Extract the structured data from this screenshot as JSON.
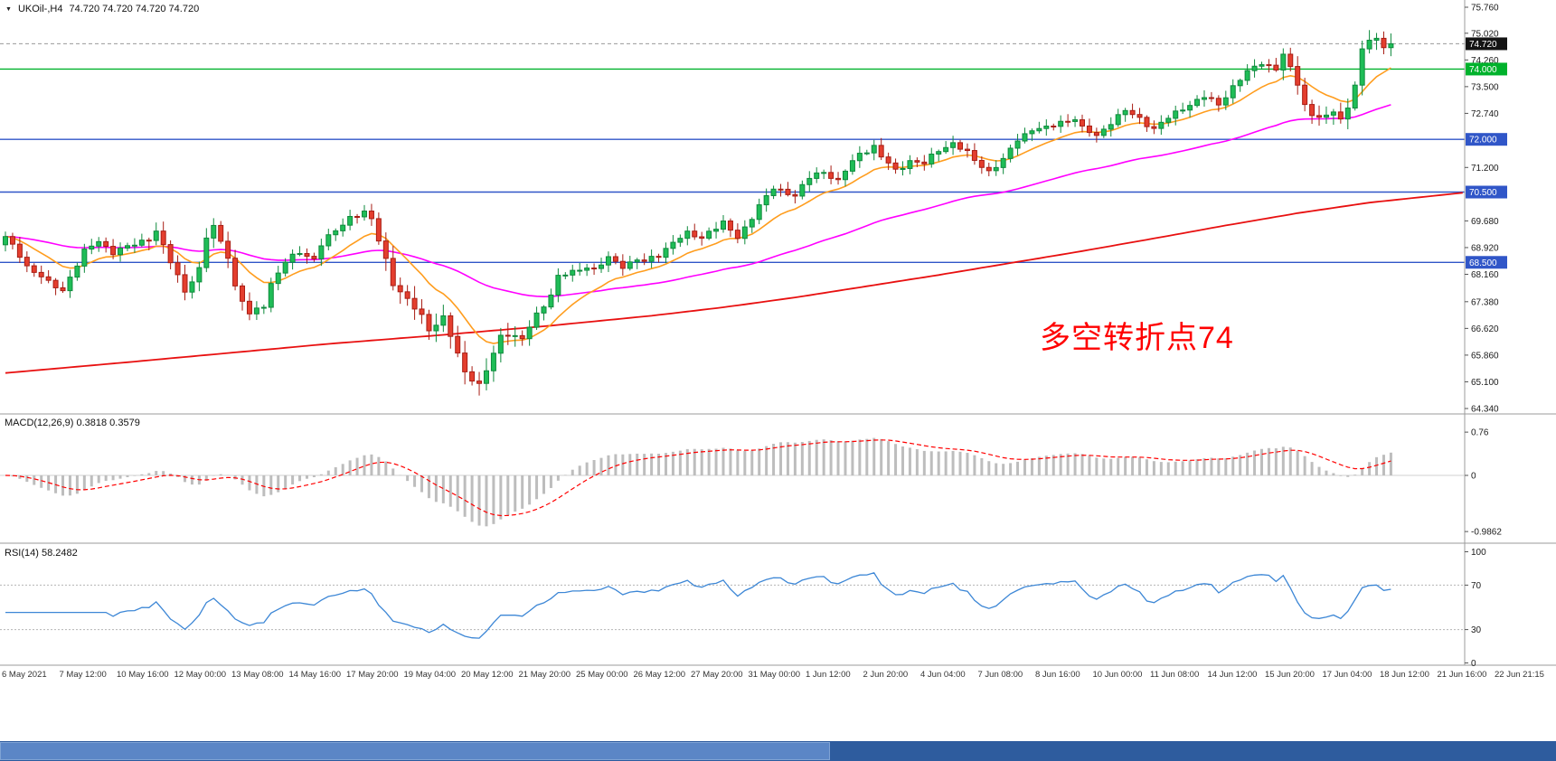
{
  "header": {
    "dropdown_icon": "▼",
    "symbol_timeframe": "UKOil-,H4",
    "ohlc": "74.720 74.720 74.720 74.720"
  },
  "annotation": {
    "text": "多空转折点74",
    "color": "#ff0000"
  },
  "colors": {
    "background": "#ffffff",
    "candle_up": "#1fbd57",
    "candle_up_border": "#0e8a3c",
    "candle_down": "#e43e2e",
    "candle_down_border": "#a81d14",
    "ma_fast": "#ff9d1e",
    "ma_mid": "#ff00ff",
    "ma_slow": "#e81010",
    "macd_histogram": "#bdbdbd",
    "macd_signal": "#ff0000",
    "rsi_line": "#3d87d6",
    "level_blue": "#3056c8",
    "level_green": "#00b22c",
    "current_tag_bg": "#141414",
    "separator": "#9b9b9b"
  },
  "bottom_bar": {
    "track_color": "#2e5c9e",
    "thumb_color": "#5b86c6"
  },
  "chart_data": {
    "type": "candlestick",
    "symbol": "UKOil-",
    "timeframe": "H4",
    "current_price": 74.72,
    "current": {
      "label": "74.720",
      "value": 74.72,
      "bg": "#141414"
    },
    "price_axis_range": [
      64.34,
      75.76
    ],
    "y_ticks": [
      "75.760",
      "75.020",
      "74.260",
      "73.500",
      "72.740",
      "71.200",
      "69.680",
      "68.920",
      "68.160",
      "67.380",
      "66.620",
      "65.860",
      "65.100",
      "64.340"
    ],
    "levels": [
      {
        "label": "74.000",
        "value": 74.0,
        "color": "#00b22c"
      },
      {
        "label": "72.000",
        "value": 72.0,
        "color": "#3056c8"
      },
      {
        "label": "70.500",
        "value": 70.5,
        "color": "#3056c8"
      },
      {
        "label": "68.500",
        "value": 68.5,
        "color": "#3056c8"
      }
    ],
    "x_labels": [
      "6 May 2021",
      "7 May 12:00",
      "10 May 16:00",
      "12 May 00:00",
      "13 May 08:00",
      "14 May 16:00",
      "17 May 20:00",
      "19 May 04:00",
      "20 May 12:00",
      "21 May 20:00",
      "25 May 00:00",
      "26 May 12:00",
      "27 May 20:00",
      "31 May 00:00",
      "1 Jun 12:00",
      "2 Jun 20:00",
      "4 Jun 04:00",
      "7 Jun 08:00",
      "8 Jun 16:00",
      "10 Jun 00:00",
      "11 Jun 08:00",
      "14 Jun 12:00",
      "15 Jun 20:00",
      "17 Jun 04:00",
      "18 Jun 12:00",
      "21 Jun 16:00",
      "22 Jun 21:15"
    ],
    "num_candles": 194,
    "candles_waypoints": [
      [
        0,
        69.2
      ],
      [
        2,
        68.7
      ],
      [
        3,
        68.4
      ],
      [
        5,
        68.1
      ],
      [
        6,
        67.9
      ],
      [
        8,
        67.7
      ],
      [
        9,
        68.1
      ],
      [
        11,
        68.8
      ],
      [
        13,
        69.1
      ],
      [
        15,
        68.8
      ],
      [
        18,
        69.0
      ],
      [
        20,
        69.2
      ],
      [
        21,
        69.4
      ],
      [
        23,
        68.5
      ],
      [
        25,
        67.7
      ],
      [
        27,
        68.3
      ],
      [
        28,
        69.2
      ],
      [
        29,
        69.5
      ],
      [
        31,
        68.7
      ],
      [
        32,
        67.8
      ],
      [
        34,
        67.0
      ],
      [
        36,
        67.3
      ],
      [
        37,
        67.9
      ],
      [
        39,
        68.5
      ],
      [
        41,
        68.8
      ],
      [
        43,
        68.6
      ],
      [
        44,
        69.0
      ],
      [
        46,
        69.4
      ],
      [
        48,
        69.8
      ],
      [
        50,
        69.9
      ],
      [
        51,
        69.7
      ],
      [
        53,
        68.6
      ],
      [
        54,
        67.9
      ],
      [
        56,
        67.4
      ],
      [
        58,
        67.0
      ],
      [
        59,
        66.6
      ],
      [
        61,
        66.9
      ],
      [
        62,
        66.4
      ],
      [
        64,
        65.4
      ],
      [
        66,
        65.0
      ],
      [
        67,
        65.4
      ],
      [
        69,
        66.4
      ],
      [
        70,
        66.5
      ],
      [
        72,
        66.3
      ],
      [
        74,
        67.0
      ],
      [
        76,
        67.6
      ],
      [
        77,
        68.1
      ],
      [
        79,
        68.2
      ],
      [
        81,
        68.4
      ],
      [
        82,
        68.3
      ],
      [
        84,
        68.6
      ],
      [
        86,
        68.4
      ],
      [
        88,
        68.6
      ],
      [
        89,
        68.5
      ],
      [
        91,
        68.7
      ],
      [
        93,
        69.1
      ],
      [
        95,
        69.3
      ],
      [
        97,
        69.2
      ],
      [
        98,
        69.4
      ],
      [
        100,
        69.6
      ],
      [
        102,
        69.2
      ],
      [
        103,
        69.5
      ],
      [
        105,
        70.1
      ],
      [
        107,
        70.6
      ],
      [
        109,
        70.5
      ],
      [
        110,
        70.4
      ],
      [
        112,
        70.9
      ],
      [
        114,
        71.1
      ],
      [
        116,
        70.8
      ],
      [
        117,
        71.1
      ],
      [
        119,
        71.6
      ],
      [
        121,
        71.8
      ],
      [
        122,
        71.5
      ],
      [
        124,
        71.1
      ],
      [
        126,
        71.4
      ],
      [
        128,
        71.3
      ],
      [
        130,
        71.7
      ],
      [
        132,
        71.9
      ],
      [
        134,
        71.6
      ],
      [
        135,
        71.4
      ],
      [
        137,
        71.1
      ],
      [
        139,
        71.4
      ],
      [
        141,
        72.0
      ],
      [
        143,
        72.3
      ],
      [
        145,
        72.3
      ],
      [
        147,
        72.5
      ],
      [
        149,
        72.6
      ],
      [
        150,
        72.3
      ],
      [
        152,
        72.1
      ],
      [
        154,
        72.5
      ],
      [
        156,
        72.8
      ],
      [
        158,
        72.6
      ],
      [
        160,
        72.3
      ],
      [
        162,
        72.6
      ],
      [
        164,
        72.9
      ],
      [
        166,
        73.1
      ],
      [
        167,
        73.2
      ],
      [
        169,
        73.0
      ],
      [
        171,
        73.5
      ],
      [
        173,
        73.9
      ],
      [
        175,
        74.2
      ],
      [
        177,
        74.0
      ],
      [
        178,
        74.4
      ],
      [
        180,
        73.6
      ],
      [
        181,
        73.0
      ],
      [
        182,
        72.7
      ],
      [
        184,
        72.6
      ],
      [
        185,
        72.8
      ],
      [
        186,
        72.6
      ],
      [
        187,
        72.9
      ],
      [
        188,
        73.6
      ],
      [
        189,
        74.5
      ],
      [
        190,
        74.8
      ],
      [
        191,
        74.9
      ],
      [
        192,
        74.6
      ],
      [
        193,
        74.72
      ]
    ],
    "moving_averages": [
      {
        "name": "ma-fast",
        "type": "ema",
        "period": 12,
        "color": "#ff9d1e"
      },
      {
        "name": "ma-mid",
        "type": "ema",
        "period": 55,
        "color": "#ff00ff"
      },
      {
        "name": "ma-slow",
        "type": "waypoints",
        "color": "#e81010",
        "points": [
          [
            0,
            65.35
          ],
          [
            15,
            65.62
          ],
          [
            30,
            65.9
          ],
          [
            45,
            66.18
          ],
          [
            60,
            66.42
          ],
          [
            75,
            66.68
          ],
          [
            90,
            66.98
          ],
          [
            100,
            67.22
          ],
          [
            110,
            67.5
          ],
          [
            120,
            67.82
          ],
          [
            130,
            68.14
          ],
          [
            140,
            68.48
          ],
          [
            150,
            68.82
          ],
          [
            160,
            69.18
          ],
          [
            170,
            69.55
          ],
          [
            180,
            69.9
          ],
          [
            190,
            70.2
          ],
          [
            203,
            70.48
          ]
        ]
      }
    ],
    "indicators": [
      {
        "name": "MACD",
        "label": "MACD(12,26,9) 0.3818 0.3579",
        "params": [
          12,
          26,
          9
        ],
        "values": [
          "0.3818",
          "0.3579"
        ],
        "y_ticks": [
          "0.76",
          "0",
          "-0.9862"
        ],
        "histogram_color": "#bdbdbd",
        "signal_color": "#ff0000"
      },
      {
        "name": "RSI",
        "label": "RSI(14) 58.2482",
        "period": 14,
        "value": "58.2482",
        "levels": [
          70,
          30
        ],
        "y_ticks": [
          "100",
          "70",
          "30",
          "0"
        ],
        "line_color": "#3d87d6"
      }
    ]
  }
}
